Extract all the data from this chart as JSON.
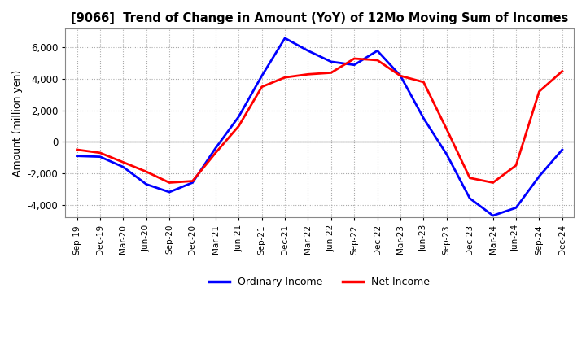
{
  "title": "[9066]  Trend of Change in Amount (YoY) of 12Mo Moving Sum of Incomes",
  "ylabel": "Amount (million yen)",
  "ylim": [
    -4800,
    7200
  ],
  "yticks": [
    -4000,
    -2000,
    0,
    2000,
    4000,
    6000
  ],
  "x_labels": [
    "Sep-19",
    "Dec-19",
    "Mar-20",
    "Jun-20",
    "Sep-20",
    "Dec-20",
    "Mar-21",
    "Jun-21",
    "Sep-21",
    "Dec-21",
    "Mar-22",
    "Jun-22",
    "Sep-22",
    "Dec-22",
    "Mar-23",
    "Jun-23",
    "Sep-23",
    "Dec-23",
    "Mar-24",
    "Jun-24",
    "Sep-24",
    "Dec-24"
  ],
  "ordinary_income": [
    -900,
    -950,
    -1600,
    -2700,
    -3200,
    -2600,
    -400,
    1600,
    4200,
    6600,
    5800,
    5100,
    4900,
    5800,
    4200,
    1500,
    -800,
    -3600,
    -4700,
    -4200,
    -2200,
    -500
  ],
  "net_income": [
    -500,
    -700,
    -1300,
    -1900,
    -2600,
    -2500,
    -700,
    1000,
    3500,
    4100,
    4300,
    4400,
    5300,
    5200,
    4200,
    3800,
    800,
    -2300,
    -2600,
    -1500,
    3200,
    4500
  ],
  "ordinary_color": "#0000ff",
  "net_color": "#ff0000",
  "grid_color": "#aaaaaa",
  "zero_line_color": "#888888",
  "background_color": "#ffffff",
  "legend_labels": [
    "Ordinary Income",
    "Net Income"
  ]
}
